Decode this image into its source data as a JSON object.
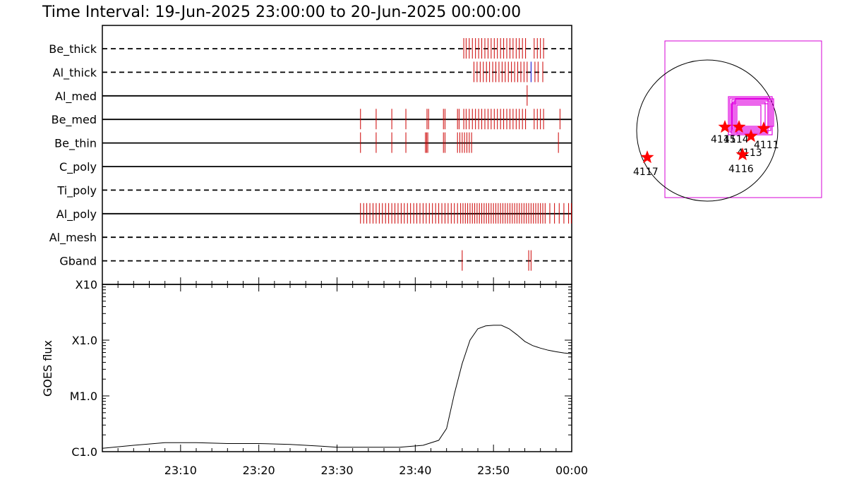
{
  "title": "Time Interval: 19-Jun-2025 23:00:00 to 20-Jun-2025 00:00:00",
  "chart_data": [
    {
      "type": "timeline",
      "filters": [
        {
          "name": "Be_thick",
          "line": "dashed"
        },
        {
          "name": "Al_thick",
          "line": "dashed"
        },
        {
          "name": "Al_med",
          "line": "solid"
        },
        {
          "name": "Be_med",
          "line": "solid"
        },
        {
          "name": "Be_thin",
          "line": "solid"
        },
        {
          "name": "C_poly",
          "line": "solid"
        },
        {
          "name": "Ti_poly",
          "line": "dashed"
        },
        {
          "name": "Al_poly",
          "line": "solid"
        },
        {
          "name": "Al_mesh",
          "line": "dashed"
        },
        {
          "name": "Gband",
          "line": "dashed"
        }
      ],
      "xlim_minutes": [
        0,
        60
      ],
      "observations_minutes": {
        "Be_thick": [
          46.2,
          46.5,
          46.9,
          47.3,
          47.7,
          48.1,
          48.5,
          48.9,
          49.3,
          49.7,
          50.1,
          50.5,
          50.9,
          51.3,
          51.7,
          52.1,
          52.5,
          52.9,
          53.3,
          53.7,
          54.1,
          55.2,
          55.6,
          56.0,
          56.4
        ],
        "Al_thick": [
          47.5,
          47.9,
          48.3,
          48.7,
          49.1,
          49.5,
          49.9,
          50.3,
          50.7,
          51.1,
          51.5,
          51.9,
          52.3,
          52.7,
          53.1,
          53.5,
          53.9,
          54.3,
          55.3,
          55.7,
          56.3
        ],
        "Al_med": [
          54.3
        ],
        "Be_med": [
          33.0,
          35.0,
          37.0,
          38.8,
          41.5,
          41.7,
          43.6,
          43.8,
          45.4,
          45.6,
          46.2,
          46.5,
          46.9,
          47.3,
          47.7,
          48.1,
          48.5,
          48.9,
          49.3,
          49.7,
          50.1,
          50.5,
          50.9,
          51.3,
          51.7,
          52.1,
          52.5,
          52.9,
          53.3,
          53.7,
          54.1,
          55.2,
          55.6,
          56.0,
          56.4,
          58.5
        ],
        "Be_thin": [
          33.0,
          35.0,
          37.0,
          38.8,
          41.3,
          41.45,
          41.6,
          43.6,
          43.8,
          45.4,
          45.7,
          46.0,
          46.3,
          46.6,
          46.9,
          47.2,
          58.3
        ],
        "Al_poly": [
          33.0,
          33.4,
          33.8,
          34.2,
          34.6,
          35.0,
          35.4,
          35.8,
          36.2,
          36.6,
          37.0,
          37.4,
          37.8,
          38.2,
          38.6,
          39.0,
          39.4,
          39.8,
          40.2,
          40.6,
          41.0,
          41.4,
          41.8,
          42.2,
          42.6,
          43.0,
          43.4,
          43.8,
          44.2,
          44.6,
          45.0,
          45.4,
          45.8,
          46.1,
          46.4,
          46.7,
          47.0,
          47.3,
          47.6,
          47.9,
          48.2,
          48.5,
          48.8,
          49.1,
          49.4,
          49.7,
          50.0,
          50.3,
          50.6,
          50.9,
          51.2,
          51.5,
          51.8,
          52.1,
          52.4,
          52.7,
          53.0,
          53.3,
          53.6,
          53.9,
          54.2,
          54.5,
          54.8,
          55.1,
          55.4,
          55.7,
          56.0,
          56.3,
          56.6,
          57.2,
          57.8,
          58.4,
          59.0,
          59.6,
          59.95
        ],
        "Gband": [
          46.0,
          54.5,
          54.8
        ]
      },
      "highlight": {
        "filter": "Al_thick",
        "minute": 54.8,
        "color": "#0000cc"
      },
      "mark_color": "#cc0000"
    },
    {
      "type": "line",
      "ylabel": "GOES flux",
      "ytick_labels": [
        "C1.0",
        "M1.0",
        "X1.0",
        "X10"
      ],
      "yscale": "log",
      "ylim": [
        1e-06,
        0.001
      ],
      "xlim_minutes": [
        0,
        60
      ],
      "xtick_labels": [
        "23:10",
        "23:20",
        "23:30",
        "23:40",
        "23:50",
        "00:00"
      ],
      "x": [
        0,
        4,
        8,
        12,
        16,
        20,
        24,
        28,
        30,
        34,
        38,
        41,
        43,
        44,
        45,
        46,
        47,
        48,
        49,
        50,
        51,
        52,
        53,
        54,
        55,
        56,
        57,
        58,
        59,
        60
      ],
      "y": [
        1.15e-06,
        1.3e-06,
        1.45e-06,
        1.45e-06,
        1.4e-06,
        1.4e-06,
        1.35e-06,
        1.25e-06,
        1.2e-06,
        1.2e-06,
        1.2e-06,
        1.3e-06,
        1.6e-06,
        2.6e-06,
        1.1e-05,
        3.8e-05,
        0.0001,
        0.00016,
        0.00018,
        0.000185,
        0.000185,
        0.00016,
        0.000125,
        9.5e-05,
        8e-05,
        7.2e-05,
        6.6e-05,
        6.2e-05,
        5.9e-05,
        5.7e-05
      ]
    },
    {
      "type": "scatter",
      "title": "",
      "regions": [
        {
          "label": "4115",
          "x": 0.25,
          "y": 0.05
        },
        {
          "label": "4114",
          "x": 0.45,
          "y": 0.05
        },
        {
          "label": "4113",
          "x": 0.62,
          "y": -0.08
        },
        {
          "label": "4111",
          "x": 0.8,
          "y": 0.03
        },
        {
          "label": "4116",
          "x": 0.5,
          "y": -0.34
        },
        {
          "label": "4117",
          "x": -0.85,
          "y": -0.38
        }
      ],
      "star_color": "#ff0000",
      "box_color": "#e000e0"
    }
  ]
}
